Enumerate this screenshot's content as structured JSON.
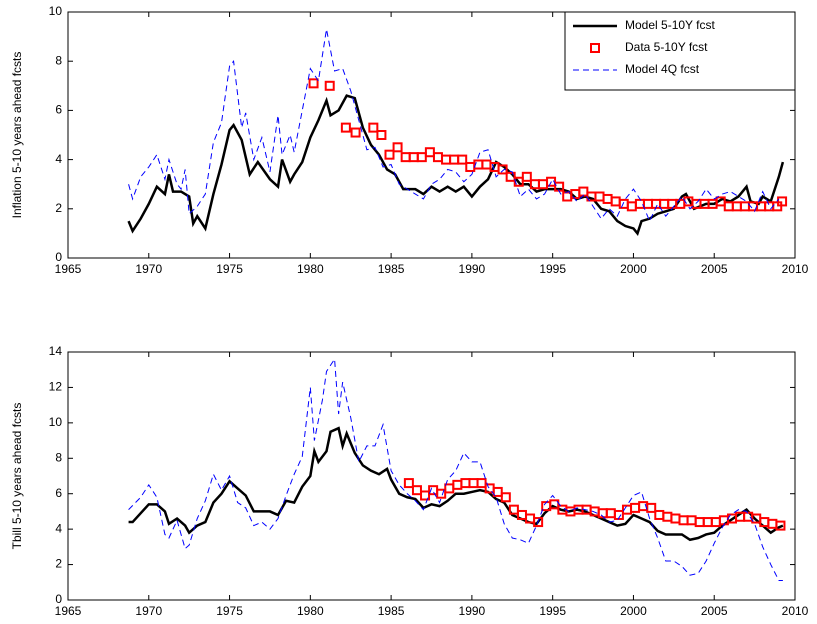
{
  "chart_data": [
    {
      "type": "line",
      "ylabel": "Inflation 5-10 years ahead fcsts",
      "xlim": [
        1965,
        2010
      ],
      "xticks": [
        1965,
        1970,
        1975,
        1980,
        1985,
        1990,
        1995,
        2000,
        2005,
        2010
      ],
      "ylim": [
        0,
        10
      ],
      "yticks": [
        0,
        2,
        4,
        6,
        8,
        10
      ],
      "legend": "upper right",
      "series": [
        {
          "name": "Model 5-10Y fcst",
          "color": "#000000",
          "style": "solid",
          "x": [
            1968.75,
            1969,
            1969.5,
            1970,
            1970.5,
            1971,
            1971.25,
            1971.5,
            1972,
            1972.5,
            1972.75,
            1973,
            1973.5,
            1974,
            1974.5,
            1975,
            1975.25,
            1975.75,
            1976.25,
            1976.75,
            1977.5,
            1978,
            1978.25,
            1978.75,
            1979,
            1979.5,
            1980,
            1980.5,
            1981,
            1981.25,
            1981.75,
            1982.25,
            1982.75,
            1983.25,
            1983.75,
            1984.25,
            1984.75,
            1985.25,
            1985.75,
            1986.5,
            1987,
            1987.5,
            1988,
            1988.5,
            1989,
            1989.5,
            1990,
            1990.5,
            1991,
            1991.5,
            1992,
            1992.5,
            1993,
            1993.5,
            1994,
            1994.5,
            1995,
            1995.5,
            1996,
            1996.5,
            1997,
            1997.5,
            1998,
            1998.5,
            1999,
            1999.5,
            2000,
            2000.25,
            2000.5,
            2001,
            2001.5,
            2002,
            2002.5,
            2003,
            2003.25,
            2003.75,
            2004.5,
            2005,
            2005.5,
            2006,
            2006.5,
            2007,
            2007.25,
            2007.75,
            2008,
            2008.5,
            2009,
            2009.25
          ],
          "values": [
            1.5,
            1.1,
            1.6,
            2.2,
            2.9,
            2.6,
            3.4,
            2.7,
            2.7,
            2.5,
            1.4,
            1.7,
            1.2,
            2.6,
            3.8,
            5.2,
            5.4,
            4.8,
            3.4,
            3.9,
            3.2,
            2.9,
            4.0,
            3.1,
            3.4,
            3.9,
            4.9,
            5.6,
            6.4,
            5.8,
            6.0,
            6.6,
            6.5,
            5.3,
            4.6,
            4.2,
            3.6,
            3.4,
            2.8,
            2.8,
            2.6,
            2.9,
            2.7,
            2.9,
            2.7,
            2.9,
            2.5,
            2.9,
            3.2,
            3.9,
            3.7,
            3.4,
            3.0,
            3.0,
            2.7,
            2.8,
            2.8,
            2.8,
            2.7,
            2.4,
            2.5,
            2.4,
            2.0,
            1.9,
            1.5,
            1.3,
            1.2,
            1.0,
            1.5,
            1.6,
            1.8,
            1.9,
            2.0,
            2.5,
            2.6,
            2.0,
            2.2,
            2.2,
            2.4,
            2.3,
            2.5,
            2.9,
            2.3,
            2.2,
            2.5,
            2.3,
            3.3,
            3.9
          ]
        },
        {
          "name": "Data 5-10Y fcst",
          "color": "#ff0000",
          "style": "markers",
          "x": [
            1980.2,
            1981.2,
            1982.2,
            1982.8,
            1983.9,
            1984.4,
            1984.9,
            1985.4,
            1985.9,
            1986.4,
            1986.9,
            1987.4,
            1987.9,
            1988.4,
            1988.9,
            1989.4,
            1989.9,
            1990.4,
            1990.9,
            1991.4,
            1991.9,
            1992.4,
            1992.9,
            1993.4,
            1993.9,
            1994.4,
            1994.9,
            1995.4,
            1995.9,
            1996.4,
            1996.9,
            1997.4,
            1997.9,
            1998.4,
            1998.9,
            1999.4,
            1999.9,
            2000.4,
            2000.9,
            2001.4,
            2001.9,
            2002.4,
            2002.9,
            2003.4,
            2003.9,
            2004.4,
            2004.9,
            2005.4,
            2005.9,
            2006.4,
            2006.9,
            2007.4,
            2007.9,
            2008.4,
            2008.9,
            2009.2
          ],
          "values": [
            7.1,
            7.0,
            5.3,
            5.1,
            5.3,
            5.0,
            4.2,
            4.5,
            4.1,
            4.1,
            4.1,
            4.3,
            4.1,
            4.0,
            4.0,
            4.0,
            3.7,
            3.8,
            3.8,
            3.7,
            3.6,
            3.3,
            3.1,
            3.3,
            3.0,
            3.0,
            3.1,
            2.9,
            2.5,
            2.6,
            2.7,
            2.5,
            2.5,
            2.4,
            2.3,
            2.2,
            2.1,
            2.2,
            2.2,
            2.2,
            2.2,
            2.2,
            2.2,
            2.3,
            2.2,
            2.2,
            2.2,
            2.3,
            2.1,
            2.1,
            2.1,
            2.1,
            2.1,
            2.1,
            2.1,
            2.3
          ]
        },
        {
          "name": "Model 4Q fcst",
          "color": "#0000ff",
          "style": "dashed",
          "x": [
            1968.75,
            1969,
            1969.5,
            1970,
            1970.5,
            1971,
            1971.25,
            1971.75,
            1972,
            1972.25,
            1972.5,
            1973,
            1973.5,
            1974,
            1974.5,
            1975,
            1975.25,
            1975.75,
            1976,
            1976.5,
            1977,
            1977.5,
            1978,
            1978.25,
            1978.75,
            1979,
            1979.5,
            1980,
            1980.5,
            1981,
            1981.5,
            1982,
            1982.5,
            1983,
            1983.5,
            1984,
            1984.5,
            1985,
            1985.5,
            1986,
            1986.5,
            1987,
            1987.5,
            1988,
            1988.5,
            1989,
            1989.5,
            1990,
            1990.5,
            1991,
            1991.5,
            1992,
            1992.5,
            1993,
            1993.5,
            1994,
            1994.5,
            1995,
            1995.5,
            1996,
            1996.5,
            1997,
            1997.5,
            1998,
            1998.5,
            1999,
            1999.5,
            2000,
            2000.5,
            2001,
            2001.5,
            2002,
            2002.5,
            2003,
            2003.5,
            2004,
            2004.5,
            2005,
            2005.5,
            2006,
            2006.5,
            2007,
            2007.5,
            2008,
            2008.5,
            2009
          ],
          "values": [
            3.0,
            2.4,
            3.3,
            3.7,
            4.2,
            3.2,
            4.0,
            3.0,
            2.8,
            3.6,
            1.8,
            2.1,
            2.6,
            4.7,
            5.5,
            7.8,
            8.0,
            5.3,
            5.9,
            4.0,
            4.9,
            3.5,
            5.8,
            4.2,
            5.0,
            4.3,
            6.0,
            7.7,
            7.2,
            9.3,
            7.6,
            7.7,
            6.8,
            5.6,
            4.4,
            4.5,
            3.7,
            3.8,
            3.0,
            2.8,
            2.6,
            2.4,
            3.0,
            3.2,
            3.6,
            3.5,
            3.1,
            3.4,
            4.3,
            4.4,
            3.3,
            3.6,
            3.5,
            2.5,
            2.8,
            2.4,
            2.6,
            3.2,
            2.6,
            2.7,
            2.3,
            2.6,
            2.1,
            1.6,
            2.0,
            1.7,
            2.4,
            2.8,
            2.3,
            1.5,
            2.2,
            1.7,
            2.1,
            2.5,
            2.0,
            2.3,
            2.8,
            2.4,
            2.6,
            2.7,
            2.5,
            2.3,
            1.9,
            2.7,
            2.0,
            2.4
          ]
        }
      ]
    },
    {
      "type": "line",
      "ylabel": "Tbill 5-10 years ahead fcsts",
      "xlim": [
        1965,
        2010
      ],
      "xticks": [
        1965,
        1970,
        1975,
        1980,
        1985,
        1990,
        1995,
        2000,
        2005,
        2010
      ],
      "ylim": [
        0,
        14
      ],
      "yticks": [
        0,
        2,
        4,
        6,
        8,
        10,
        12,
        14
      ],
      "series": [
        {
          "color": "#000000",
          "style": "solid",
          "x": [
            1968.75,
            1969,
            1969.5,
            1970,
            1970.5,
            1971,
            1971.25,
            1971.75,
            1972.25,
            1972.5,
            1973,
            1973.5,
            1974,
            1974.5,
            1975,
            1975.5,
            1976,
            1976.5,
            1977,
            1977.5,
            1978,
            1978.5,
            1979,
            1979.5,
            1980,
            1980.25,
            1980.5,
            1981,
            1981.25,
            1981.75,
            1982,
            1982.25,
            1982.75,
            1983.25,
            1983.75,
            1984.25,
            1984.75,
            1985,
            1985.5,
            1986,
            1986.5,
            1987,
            1987.5,
            1988,
            1988.5,
            1989,
            1989.5,
            1990,
            1990.5,
            1991,
            1991.5,
            1992,
            1992.5,
            1993,
            1993.5,
            1994,
            1994.5,
            1995,
            1995.5,
            1996,
            1996.5,
            1997,
            1997.5,
            1998,
            1998.5,
            1999,
            1999.5,
            2000,
            2000.5,
            2001,
            2001.5,
            2002,
            2002.5,
            2003,
            2003.5,
            2004,
            2004.5,
            2005,
            2005.5,
            2006,
            2006.5,
            2007,
            2007.5,
            2008,
            2008.5,
            2009,
            2009.25
          ],
          "values": [
            4.4,
            4.4,
            4.9,
            5.4,
            5.4,
            5.0,
            4.3,
            4.6,
            4.2,
            3.8,
            4.2,
            4.4,
            5.5,
            6.0,
            6.7,
            6.3,
            5.9,
            5.0,
            5.0,
            5.0,
            4.8,
            5.6,
            5.5,
            6.4,
            7.0,
            8.4,
            7.8,
            8.4,
            9.5,
            9.7,
            8.7,
            9.4,
            8.3,
            7.6,
            7.3,
            7.1,
            7.4,
            6.8,
            6.0,
            5.8,
            5.7,
            5.2,
            5.4,
            5.3,
            5.6,
            6.0,
            6.0,
            6.1,
            6.2,
            6.1,
            5.7,
            5.5,
            4.8,
            4.6,
            4.4,
            4.3,
            4.9,
            5.3,
            5.1,
            5.0,
            5.1,
            5.0,
            4.8,
            4.6,
            4.4,
            4.2,
            4.3,
            4.8,
            4.6,
            4.4,
            3.9,
            3.7,
            3.7,
            3.7,
            3.4,
            3.5,
            3.7,
            3.8,
            4.2,
            4.5,
            4.8,
            5.1,
            4.6,
            4.2,
            3.8,
            4.1,
            4.2
          ]
        },
        {
          "color": "#ff0000",
          "style": "markers",
          "x": [
            1986.1,
            1986.6,
            1987.1,
            1987.6,
            1988.1,
            1988.6,
            1989.1,
            1989.6,
            1990.1,
            1990.6,
            1991.1,
            1991.6,
            1992.1,
            1992.6,
            1993.1,
            1993.6,
            1994.1,
            1994.6,
            1995.1,
            1995.6,
            1996.1,
            1996.6,
            1997.1,
            1997.6,
            1998.1,
            1998.6,
            1999.1,
            1999.6,
            2000.1,
            2000.6,
            2001.1,
            2001.6,
            2002.1,
            2002.6,
            2003.1,
            2003.6,
            2004.1,
            2004.6,
            2005.1,
            2005.6,
            2006.1,
            2006.6,
            2007.1,
            2007.6,
            2008.1,
            2008.6,
            2009.1
          ],
          "values": [
            6.6,
            6.2,
            5.9,
            6.2,
            6.0,
            6.3,
            6.5,
            6.6,
            6.6,
            6.6,
            6.3,
            6.1,
            5.8,
            5.1,
            4.8,
            4.6,
            4.4,
            5.3,
            5.4,
            5.1,
            5.0,
            5.1,
            5.1,
            5.0,
            4.9,
            4.9,
            4.8,
            5.1,
            5.2,
            5.3,
            5.2,
            4.8,
            4.7,
            4.6,
            4.5,
            4.5,
            4.4,
            4.4,
            4.4,
            4.5,
            4.6,
            4.7,
            4.7,
            4.6,
            4.4,
            4.3,
            4.2
          ]
        },
        {
          "color": "#0000ff",
          "style": "dashed",
          "x": [
            1968.75,
            1969.5,
            1970,
            1970.5,
            1971,
            1971.25,
            1971.75,
            1972.25,
            1972.5,
            1973,
            1973.5,
            1974,
            1974.5,
            1975,
            1975.5,
            1976,
            1976.5,
            1977,
            1977.5,
            1978,
            1978.5,
            1979,
            1979.5,
            1980,
            1980.25,
            1980.75,
            1981,
            1981.5,
            1981.75,
            1982,
            1982.5,
            1983,
            1983.5,
            1984,
            1984.5,
            1985,
            1985.5,
            1986,
            1986.5,
            1987,
            1987.5,
            1988,
            1988.5,
            1989,
            1989.5,
            1990,
            1990.5,
            1991,
            1991.5,
            1992,
            1992.5,
            1993,
            1993.5,
            1994,
            1994.5,
            1995,
            1995.5,
            1996,
            1996.5,
            1997,
            1997.5,
            1998,
            1998.5,
            1999,
            1999.5,
            2000,
            2000.5,
            2001,
            2001.5,
            2002,
            2002.5,
            2003,
            2003.5,
            2004,
            2004.5,
            2005,
            2005.5,
            2006,
            2006.5,
            2007,
            2007.5,
            2008,
            2008.5,
            2009,
            2009.25
          ],
          "values": [
            5.1,
            5.8,
            6.5,
            5.8,
            3.7,
            3.5,
            4.5,
            2.9,
            3.1,
            4.6,
            5.6,
            7.1,
            6.2,
            7.0,
            5.5,
            5.2,
            4.2,
            4.4,
            4.0,
            4.6,
            5.9,
            7.1,
            8.1,
            12.0,
            9.0,
            11.3,
            12.9,
            13.6,
            10.5,
            12.3,
            10.3,
            7.8,
            8.7,
            8.7,
            9.9,
            7.3,
            6.5,
            6.0,
            5.6,
            5.1,
            6.3,
            5.5,
            6.8,
            7.3,
            8.3,
            7.8,
            7.8,
            6.4,
            5.8,
            4.3,
            3.5,
            3.4,
            3.2,
            4.2,
            5.4,
            5.9,
            5.3,
            5.0,
            5.2,
            5.1,
            5.0,
            4.8,
            4.4,
            4.5,
            5.2,
            5.9,
            6.1,
            4.6,
            3.5,
            2.2,
            2.2,
            1.9,
            1.4,
            1.5,
            2.2,
            3.2,
            4.1,
            4.8,
            5.1,
            5.0,
            4.3,
            3.0,
            2.0,
            1.1,
            1.1
          ]
        }
      ]
    }
  ]
}
